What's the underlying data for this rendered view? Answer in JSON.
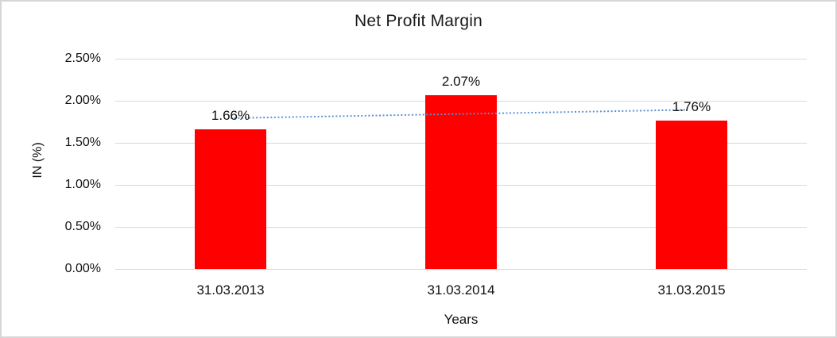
{
  "chart_data": {
    "type": "bar",
    "title": "Net Profit Margin",
    "xlabel": "Years",
    "ylabel": "IN (%)",
    "categories": [
      "31.03.2013",
      "31.03.2014",
      "31.03.2015"
    ],
    "series": [
      {
        "name": "Net Profit Margin",
        "color": "#ff0000",
        "values": [
          1.66,
          2.07,
          1.76
        ],
        "labels": [
          "1.66%",
          "2.07%",
          "1.76%"
        ]
      }
    ],
    "ylim": [
      0,
      2.5
    ],
    "y_ticks": [
      "0.00%",
      "0.50%",
      "1.00%",
      "1.50%",
      "2.00%",
      "2.50%"
    ],
    "y_tick_values": [
      0,
      0.5,
      1.0,
      1.5,
      2.0,
      2.5
    ],
    "grid": true,
    "legend": "none",
    "gridline_color": "#d9d9d9",
    "trendline": {
      "type": "linear",
      "style": "dotted",
      "color": "#5b8fd2",
      "start_value": 1.78,
      "end_value": 1.88
    }
  }
}
